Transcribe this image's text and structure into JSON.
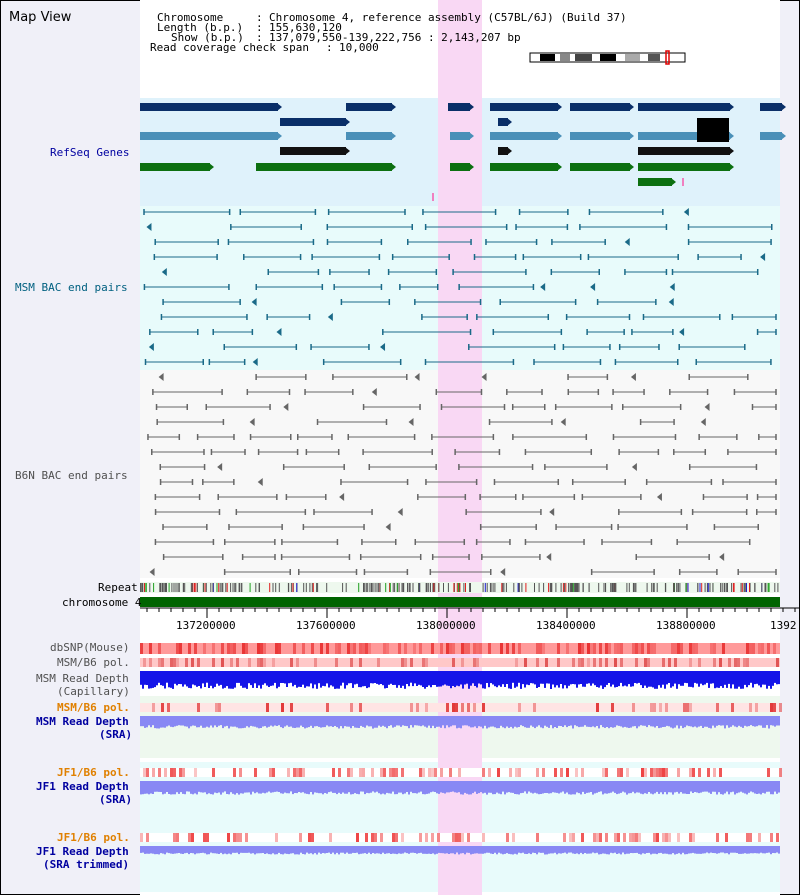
{
  "view_title": "Map View",
  "header": {
    "chromosome_label": "Chromosome",
    "chromosome_value": "Chromosome 4, reference assembly (C57BL/6J) (Build 37)",
    "length_label": "Length (b.p.)",
    "length_value": "155,630,120",
    "show_label": "Show (b.p.)",
    "show_value": "137,079,550-139,222,756 : 2,143,207 bp",
    "coverage_label": "Read coverage check span",
    "coverage_value": "10,000"
  },
  "tracks": {
    "refseq": "RefSeq Genes",
    "msm_bac": "MSM BAC end pairs",
    "b6n_bac": "B6N BAC end pairs",
    "repeat": "Repeat",
    "chromosome": "chromosome 4",
    "dbsnp": "dbSNP(Mouse)",
    "msm_b6_pol": "MSM/B6 pol.",
    "msm_depth_cap_1": "MSM Read Depth",
    "msm_depth_cap_2": "(Capillary)",
    "msm_b6_pol_2": "MSM/B6 pol.",
    "msm_depth_sra_1": "MSM Read Depth",
    "msm_depth_sra_2": "(SRA)",
    "jf1_pol": "JF1/B6 pol.",
    "jf1_depth_sra_1": "JF1 Read Depth",
    "jf1_depth_sra_2": "(SRA)",
    "jf1_pol_2": "JF1/B6 pol.",
    "jf1_depth_trim_1": "JF1 Read Depth",
    "jf1_depth_trim_2": "(SRA trimmed)"
  },
  "axis": {
    "ticks": [
      "137200000",
      "137600000",
      "138000000",
      "138400000",
      "138800000",
      "1392"
    ]
  },
  "colors": {
    "highlight": "#f9d8f4",
    "refseq_bg": "#dff2fb",
    "msm_bg": "#e8fbfb",
    "b6n_bg": "#f8f8f8",
    "gene_dark": "#0a2f68",
    "gene_mid": "#4a90b8",
    "gene_green": "#0c7010",
    "bac_msm": "#1a6a88",
    "bac_b6n": "#666666",
    "chrom_bar": "#006400",
    "depth_blue": "#1515e8",
    "depth_violet": "#8888f4",
    "pol_red": "#e83030",
    "orange_label": "#e08000",
    "navy_label": "#0000a0",
    "teal_label": "#006080"
  }
}
